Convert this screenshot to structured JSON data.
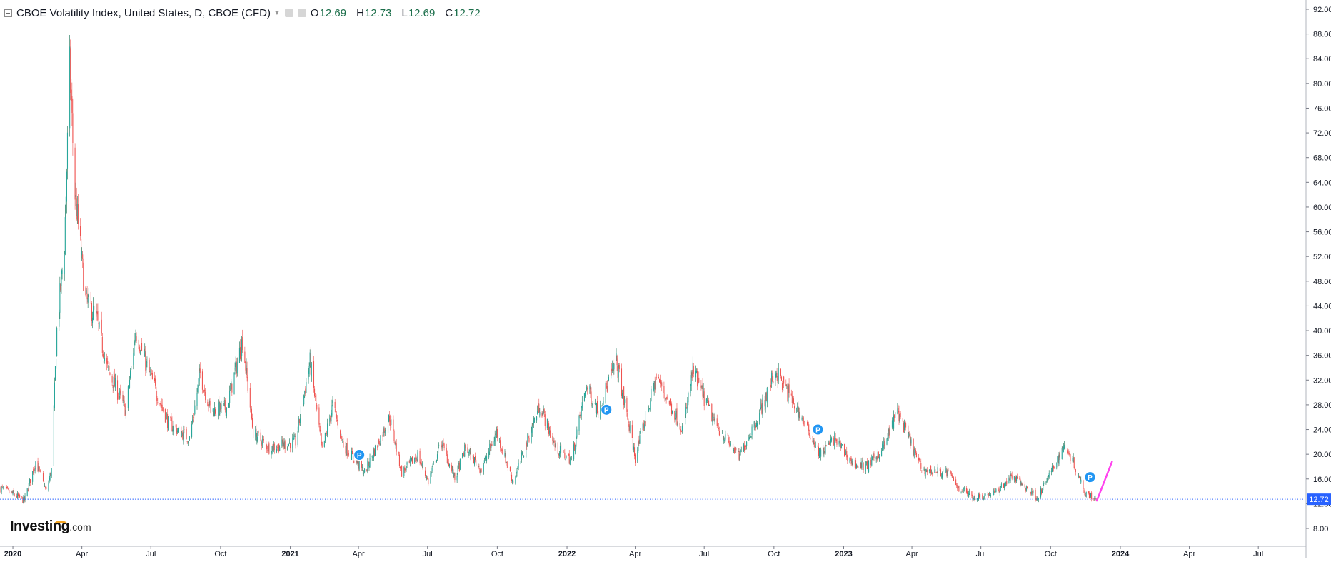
{
  "legend": {
    "title": "CBOE Volatility Index, United States, D, CBOE (CFD)",
    "open_label": "O",
    "open": "12.69",
    "high_label": "H",
    "high": "12.73",
    "low_label": "L",
    "low": "12.69",
    "close_label": "C",
    "close": "12.72"
  },
  "brand": {
    "name": "Investing",
    "suffix": ".com"
  },
  "colors": {
    "up": "#26a69a",
    "up_dark": "#0d6e4f",
    "down": "#ef5350",
    "price_line": "#2962ff",
    "price_tag": "#2962ff",
    "marker": "#2196f3",
    "trend_line": "#ff44ee"
  },
  "chart_data": {
    "type": "candlestick",
    "title": "CBOE Volatility Index, United States, D, CBOE (CFD)",
    "xlabel": "",
    "ylabel": "",
    "ylim": [
      6.5,
      93.5
    ],
    "y_ticks": [
      "92.00",
      "88.00",
      "84.00",
      "80.00",
      "76.00",
      "72.00",
      "68.00",
      "64.00",
      "60.00",
      "56.00",
      "52.00",
      "48.00",
      "44.00",
      "40.00",
      "36.00",
      "32.00",
      "28.00",
      "24.00",
      "20.00",
      "16.00",
      "12.00",
      "8.00"
    ],
    "x_ticks": [
      {
        "label": "2020",
        "date": "2020-01-01"
      },
      {
        "label": "Apr",
        "date": "2020-04-01"
      },
      {
        "label": "Jul",
        "date": "2020-07-01"
      },
      {
        "label": "Oct",
        "date": "2020-10-01"
      },
      {
        "label": "2021",
        "date": "2021-01-01"
      },
      {
        "label": "Apr",
        "date": "2021-04-01"
      },
      {
        "label": "Jul",
        "date": "2021-07-01"
      },
      {
        "label": "Oct",
        "date": "2021-10-01"
      },
      {
        "label": "2022",
        "date": "2022-01-01"
      },
      {
        "label": "Apr",
        "date": "2022-04-01"
      },
      {
        "label": "Jul",
        "date": "2022-07-01"
      },
      {
        "label": "Oct",
        "date": "2022-10-01"
      },
      {
        "label": "2023",
        "date": "2023-01-01"
      },
      {
        "label": "Apr",
        "date": "2023-04-01"
      },
      {
        "label": "Jul",
        "date": "2023-07-01"
      },
      {
        "label": "Oct",
        "date": "2023-10-01"
      },
      {
        "label": "2024",
        "date": "2024-01-01"
      },
      {
        "label": "Apr",
        "date": "2024-04-01"
      },
      {
        "label": "Jul",
        "date": "2024-07-01"
      }
    ],
    "x_range": [
      "2019-12-15",
      "2024-09-01"
    ],
    "series": [
      {
        "anchors": [
          [
            "2019-12-16",
            14.5
          ],
          [
            "2020-01-02",
            13.5
          ],
          [
            "2020-01-16",
            12.5
          ],
          [
            "2020-01-31",
            18.8
          ],
          [
            "2020-02-14",
            14.0
          ],
          [
            "2020-02-21",
            17.5
          ],
          [
            "2020-02-28",
            40.0
          ],
          [
            "2020-03-09",
            54.0
          ],
          [
            "2020-03-16",
            82.5
          ],
          [
            "2020-03-23",
            62.0
          ],
          [
            "2020-04-06",
            45.0
          ],
          [
            "2020-04-20",
            42.0
          ],
          [
            "2020-05-04",
            34.0
          ],
          [
            "2020-05-29",
            27.0
          ],
          [
            "2020-06-11",
            40.0
          ],
          [
            "2020-06-26",
            34.0
          ],
          [
            "2020-07-24",
            25.0
          ],
          [
            "2020-08-21",
            22.5
          ],
          [
            "2020-09-04",
            33.0
          ],
          [
            "2020-09-18",
            27.0
          ],
          [
            "2020-10-09",
            27.5
          ],
          [
            "2020-10-30",
            38.5
          ],
          [
            "2020-11-13",
            23.5
          ],
          [
            "2020-12-04",
            21.0
          ],
          [
            "2021-01-08",
            22.0
          ],
          [
            "2021-01-27",
            35.0
          ],
          [
            "2021-02-12",
            20.5
          ],
          [
            "2021-02-26",
            28.0
          ],
          [
            "2021-03-12",
            21.5
          ],
          [
            "2021-04-09",
            17.0
          ],
          [
            "2021-05-12",
            26.0
          ],
          [
            "2021-05-28",
            17.0
          ],
          [
            "2021-06-18",
            19.8
          ],
          [
            "2021-07-02",
            15.5
          ],
          [
            "2021-07-19",
            22.0
          ],
          [
            "2021-08-06",
            16.0
          ],
          [
            "2021-08-20",
            21.0
          ],
          [
            "2021-09-10",
            17.5
          ],
          [
            "2021-09-30",
            23.5
          ],
          [
            "2021-10-22",
            15.5
          ],
          [
            "2021-11-26",
            28.0
          ],
          [
            "2021-12-17",
            21.0
          ],
          [
            "2022-01-07",
            19.0
          ],
          [
            "2022-01-26",
            31.0
          ],
          [
            "2022-02-11",
            27.0
          ],
          [
            "2022-03-07",
            35.0
          ],
          [
            "2022-04-01",
            19.5
          ],
          [
            "2022-04-29",
            32.5
          ],
          [
            "2022-05-13",
            29.0
          ],
          [
            "2022-06-03",
            24.0
          ],
          [
            "2022-06-16",
            33.5
          ],
          [
            "2022-07-15",
            25.0
          ],
          [
            "2022-08-16",
            19.5
          ],
          [
            "2022-09-13",
            27.0
          ],
          [
            "2022-10-03",
            33.5
          ],
          [
            "2022-11-15",
            24.0
          ],
          [
            "2022-12-01",
            20.0
          ],
          [
            "2022-12-20",
            22.5
          ],
          [
            "2023-01-13",
            18.5
          ],
          [
            "2023-02-02",
            18.0
          ],
          [
            "2023-02-24",
            21.5
          ],
          [
            "2023-03-13",
            27.0
          ],
          [
            "2023-04-14",
            17.5
          ],
          [
            "2023-05-19",
            17.0
          ],
          [
            "2023-06-02",
            14.5
          ],
          [
            "2023-06-23",
            13.0
          ],
          [
            "2023-07-21",
            13.8
          ],
          [
            "2023-08-11",
            16.5
          ],
          [
            "2023-09-14",
            13.0
          ],
          [
            "2023-10-20",
            21.5
          ],
          [
            "2023-10-30",
            19.0
          ],
          [
            "2023-11-15",
            14.0
          ],
          [
            "2023-11-30",
            12.72
          ]
        ]
      }
    ],
    "price_line": {
      "value": 12.72,
      "label": "12.72"
    },
    "markers": [
      {
        "date": "2021-04-02",
        "value": 19.9,
        "label": "P"
      },
      {
        "date": "2022-02-22",
        "value": 27.2,
        "label": "P"
      },
      {
        "date": "2022-11-28",
        "value": 24.0,
        "label": "P"
      },
      {
        "date": "2023-11-22",
        "value": 16.3,
        "label": "P"
      }
    ],
    "trend_line": {
      "from": {
        "date": "2023-12-01",
        "value": 12.5
      },
      "to": {
        "date": "2023-12-21",
        "value": 18.8
      }
    },
    "grid": false
  }
}
